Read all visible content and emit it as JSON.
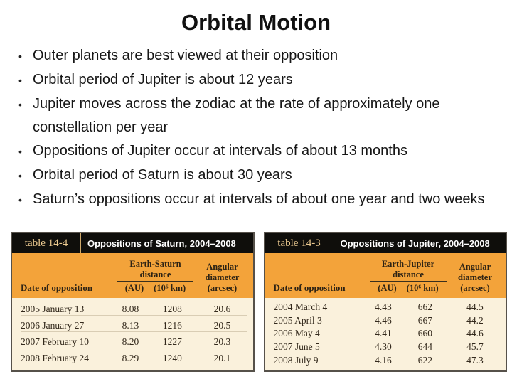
{
  "slide": {
    "title": "Orbital Motion",
    "bullet_marker": "•",
    "bullets": [
      "Outer planets are best viewed at their opposition",
      "Orbital period of Jupiter is about 12 years",
      "Jupiter moves across the zodiac at the rate of approximately one constellation per year",
      "Oppositions of Jupiter occur at intervals of about 13 months",
      "Orbital period of Saturn is about 30 years",
      "Saturn’s oppositions occur at intervals of about one year and two weeks"
    ]
  },
  "tables": {
    "saturn": {
      "label": "table 14-4",
      "title": "Oppositions of Saturn, 2004–2008",
      "columns": {
        "date": "Date of opposition",
        "distance_group": "Earth-Saturn distance",
        "au": "(AU)",
        "km": "(10⁶ km)",
        "angular": "Angular diameter (arcsec)"
      },
      "rows": [
        {
          "date": "2005 January 13",
          "au": "8.08",
          "km": "1208",
          "arcsec": "20.6"
        },
        {
          "date": "2006 January 27",
          "au": "8.13",
          "km": "1216",
          "arcsec": "20.5"
        },
        {
          "date": "2007 February 10",
          "au": "8.20",
          "km": "1227",
          "arcsec": "20.3"
        },
        {
          "date": "2008 February 24",
          "au": "8.29",
          "km": "1240",
          "arcsec": "20.1"
        }
      ]
    },
    "jupiter": {
      "label": "table 14-3",
      "title": "Oppositions of Jupiter, 2004–2008",
      "columns": {
        "date": "Date of opposition",
        "distance_group": "Earth-Jupiter distance",
        "au": "(AU)",
        "km": "(10⁶ km)",
        "angular": "Angular diameter (arcsec)"
      },
      "rows": [
        {
          "date": "2004 March 4",
          "au": "4.43",
          "km": "662",
          "arcsec": "44.5"
        },
        {
          "date": "2005 April 3",
          "au": "4.46",
          "km": "667",
          "arcsec": "44.2"
        },
        {
          "date": "2006 May 4",
          "au": "4.41",
          "km": "660",
          "arcsec": "44.6"
        },
        {
          "date": "2007 June 5",
          "au": "4.30",
          "km": "644",
          "arcsec": "45.7"
        },
        {
          "date": "2008 July 9",
          "au": "4.16",
          "km": "622",
          "arcsec": "47.3"
        }
      ]
    }
  },
  "colors": {
    "header_orange": "#f3a33a",
    "body_cream": "#faf1dc",
    "titlebar_black": "#0f0e0b",
    "label_gold": "#eac88f"
  }
}
